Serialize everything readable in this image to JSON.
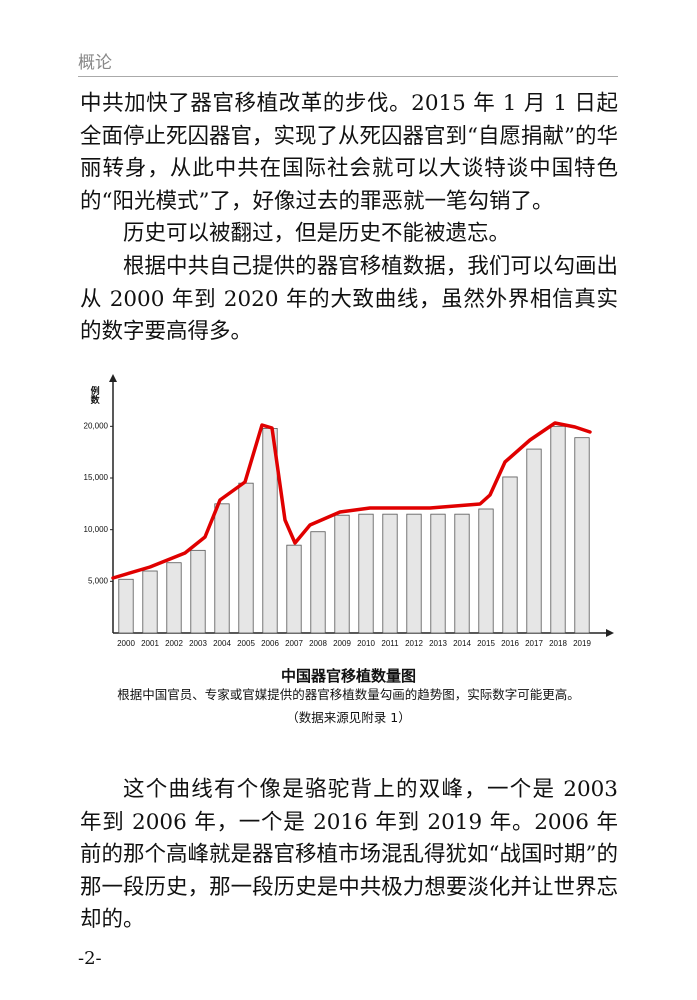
{
  "header": {
    "title": "概论"
  },
  "paragraphs": [
    "中共加快了器官移植改革的步伐。2015 年 1 月 1 日起全面停止死囚器官，实现了从死囚器官到“自愿捐献”的华丽转身，从此中共在国际社会就可以大谈特谈中国特色的“阳光模式”了，好像过去的罪恶就一笔勾销了。",
    "历史可以被翻过，但是历史不能被遗忘。",
    "根据中共自己提供的器官移植数据，我们可以勾画出从 2000 年到 2020 年的大致曲线，虽然外界相信真实的数字要高得多。",
    "这个曲线有个像是骆驼背上的双峰，一个是 2003 年到 2006 年，一个是 2016 年到 2019 年。2006 年前的那个高峰就是器官移植市场混乱得犹如“战国时期”的那一段历史，那一段历史是中共极力想要淡化并让世界忘却的。"
  ],
  "chart_data": {
    "type": "bar",
    "title": "中国器官移植数量图",
    "y_label": "例数",
    "categories": [
      "2000",
      "2001",
      "2002",
      "2003",
      "2004",
      "2005",
      "2006",
      "2007",
      "2008",
      "2009",
      "2010",
      "2011",
      "2012",
      "2013",
      "2014",
      "2015",
      "2016",
      "2017",
      "2018",
      "2019"
    ],
    "values": [
      5200,
      6000,
      6800,
      8000,
      12500,
      14500,
      19800,
      8500,
      9800,
      11400,
      11500,
      11500,
      11500,
      11500,
      11500,
      12000,
      15100,
      17800,
      20000,
      18900
    ],
    "color": "#e6e6e6",
    "ylim": [
      0,
      24000
    ],
    "yticks": [
      {
        "value": 5000,
        "label": "5,000"
      },
      {
        "value": 10000,
        "label": "10,000"
      },
      {
        "value": 15000,
        "label": "15,000"
      },
      {
        "value": 20000,
        "label": "20,000"
      }
    ],
    "grid": false
  },
  "caption": "根据中国官员、专家或官媒提供的器官移植数量勾画的趋势图，实际数字可能更高。",
  "source": "（数据来源见附录 1）",
  "page_number": "-2-"
}
